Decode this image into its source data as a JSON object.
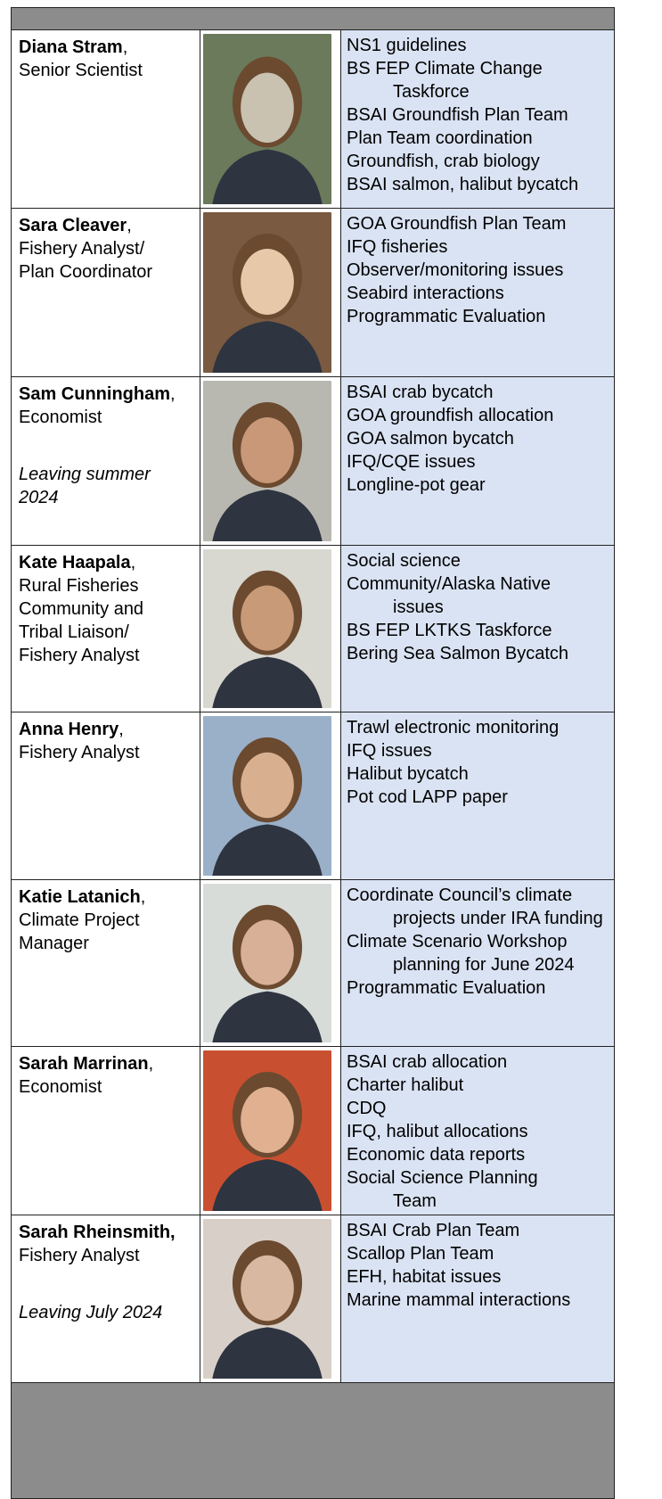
{
  "staff": [
    {
      "name": "Diana Stram",
      "suffix": ",",
      "role": [
        "Senior Scientist"
      ],
      "duties": [
        "NS1 guidelines",
        [
          "BS FEP Climate Change",
          "Taskforce"
        ],
        "BSAI Groundfish Plan Team",
        "Plan Team coordination",
        "Groundfish, crab biology",
        "BSAI salmon, halibut bycatch"
      ]
    },
    {
      "name": "Sara Cleaver",
      "suffix": ",",
      "role": [
        "Fishery Analyst/",
        "Plan Coordinator"
      ],
      "duties": [
        "GOA Groundfish Plan Team",
        "IFQ fisheries",
        "Observer/monitoring issues",
        "Seabird interactions",
        "Programmatic Evaluation"
      ]
    },
    {
      "name": "Sam Cunningham",
      "suffix": ",",
      "role": [
        "Economist"
      ],
      "note": "Leaving summer 2024",
      "duties": [
        "BSAI crab bycatch",
        "GOA groundfish allocation",
        "GOA salmon bycatch",
        "IFQ/CQE issues",
        "Longline-pot gear"
      ]
    },
    {
      "name": "Kate Haapala",
      "suffix": ",",
      "role": [
        "Rural Fisheries",
        "Community and",
        "Tribal Liaison/",
        "Fishery Analyst"
      ],
      "duties": [
        "Social science",
        [
          "Community/Alaska Native",
          "issues"
        ],
        "BS FEP LKTKS Taskforce",
        "Bering Sea Salmon Bycatch"
      ]
    },
    {
      "name": "Anna Henry",
      "suffix": ",",
      "role": [
        "Fishery Analyst"
      ],
      "duties": [
        "Trawl electronic monitoring",
        "IFQ issues",
        "Halibut bycatch",
        "Pot cod LAPP paper"
      ]
    },
    {
      "name": "Katie Latanich",
      "suffix": ",",
      "role": [
        "Climate Project",
        "Manager"
      ],
      "duties": [
        [
          "Coordinate Council’s climate",
          "projects under IRA funding"
        ],
        [
          "Climate Scenario Workshop",
          "planning for June 2024"
        ],
        "Programmatic Evaluation"
      ]
    },
    {
      "name": "Sarah Marrinan",
      "suffix": ",",
      "role": [
        "Economist"
      ],
      "duties": [
        "BSAI crab allocation",
        "Charter halibut",
        "CDQ",
        "IFQ, halibut allocations",
        "Economic data reports",
        [
          "Social Science Planning",
          "Team"
        ]
      ]
    },
    {
      "name": "Sarah Rheinsmith,",
      "role": [
        "Fishery Analyst"
      ],
      "note": "Leaving July 2024",
      "duties": [
        "BSAI Crab Plan Team",
        "Scallop Plan Team",
        "EFH, habitat issues",
        "Marine mammal interactions"
      ]
    }
  ]
}
